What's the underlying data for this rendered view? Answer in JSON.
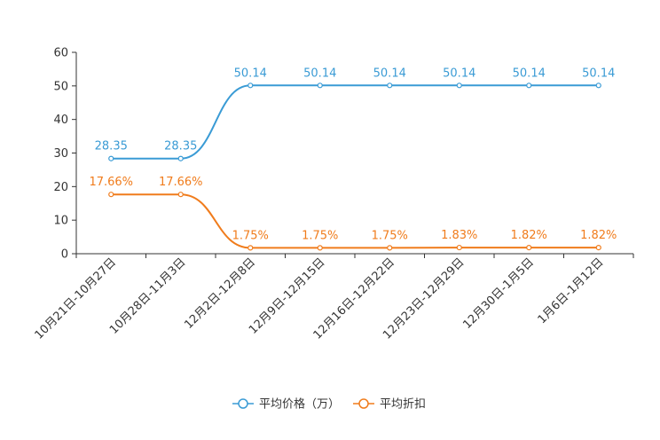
{
  "chart_data": {
    "type": "line",
    "title": "",
    "xlabel": "",
    "ylabel": "",
    "ylim": [
      0,
      60
    ],
    "yticks": [
      0,
      10,
      20,
      30,
      40,
      50,
      60
    ],
    "categories": [
      "10月21日-10月27日",
      "10月28日-11月3日",
      "12月2日-12月8日",
      "12月9日-12月15日",
      "12月16日-12月22日",
      "12月23日-12月29日",
      "12月30日-1月5日",
      "1月6日-1月12日"
    ],
    "series": [
      {
        "name": "平均价格（万）",
        "color": "#3a9bd5",
        "values": [
          28.35,
          28.35,
          50.14,
          50.14,
          50.14,
          50.14,
          50.14,
          50.14
        ],
        "labels": [
          "28.35",
          "28.35",
          "50.14",
          "50.14",
          "50.14",
          "50.14",
          "50.14",
          "50.14"
        ]
      },
      {
        "name": "平均折扣",
        "color": "#f07c1c",
        "values": [
          17.66,
          17.66,
          1.75,
          1.75,
          1.75,
          1.83,
          1.82,
          1.82
        ],
        "labels": [
          "17.66%",
          "17.66%",
          "1.75%",
          "1.75%",
          "1.75%",
          "1.83%",
          "1.82%",
          "1.82%"
        ]
      }
    ],
    "legend_position": "bottom-center",
    "grid": false
  }
}
